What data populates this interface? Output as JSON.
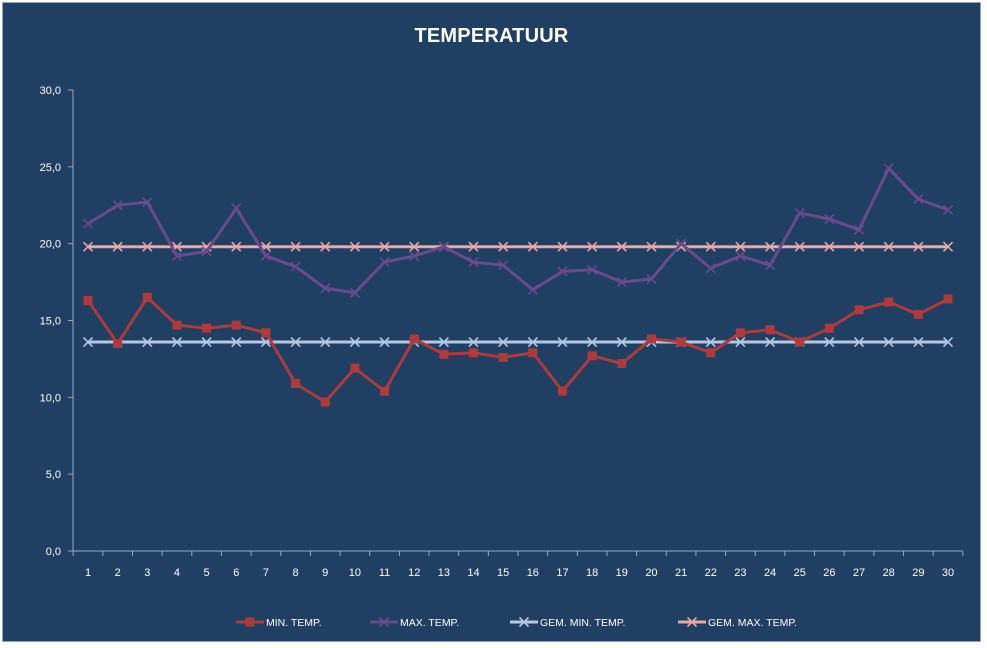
{
  "chart_data": {
    "type": "line",
    "title": "TEMPERATUUR",
    "xlabel": "",
    "ylabel": "",
    "x": [
      1,
      2,
      3,
      4,
      5,
      6,
      7,
      8,
      9,
      10,
      11,
      12,
      13,
      14,
      15,
      16,
      17,
      18,
      19,
      20,
      21,
      22,
      23,
      24,
      25,
      26,
      27,
      28,
      29,
      30
    ],
    "ylim": [
      0,
      30
    ],
    "yticks": [
      "0,0",
      "5,0",
      "10,0",
      "15,0",
      "20,0",
      "25,0",
      "30,0"
    ],
    "ytick_values": [
      0,
      5,
      10,
      15,
      20,
      25,
      30
    ],
    "grid": false,
    "legend": "bottom",
    "series": [
      {
        "name": "MIN. TEMP.",
        "color": "#b03a3a",
        "marker": "square",
        "values": [
          16.3,
          13.5,
          16.5,
          14.7,
          14.5,
          14.7,
          14.2,
          10.9,
          9.7,
          11.9,
          10.4,
          13.8,
          12.8,
          12.9,
          12.6,
          12.9,
          10.4,
          12.7,
          12.2,
          13.8,
          13.6,
          12.9,
          14.2,
          14.4,
          13.6,
          14.5,
          15.7,
          16.2,
          15.4,
          16.4
        ]
      },
      {
        "name": "MAX. TEMP.",
        "color": "#6b4a8c",
        "marker": "x",
        "values": [
          21.3,
          22.5,
          22.7,
          19.2,
          19.5,
          22.3,
          19.2,
          18.5,
          17.1,
          16.8,
          18.8,
          19.2,
          19.8,
          18.8,
          18.6,
          17.0,
          18.2,
          18.3,
          17.5,
          17.7,
          20.0,
          18.4,
          19.2,
          18.6,
          22.0,
          21.6,
          20.9,
          24.9,
          22.9,
          22.2
        ]
      },
      {
        "name": "GEM. MIN. TEMP.",
        "color": "#b4c8e2",
        "marker": "x",
        "values": [
          13.6,
          13.6,
          13.6,
          13.6,
          13.6,
          13.6,
          13.6,
          13.6,
          13.6,
          13.6,
          13.6,
          13.6,
          13.6,
          13.6,
          13.6,
          13.6,
          13.6,
          13.6,
          13.6,
          13.6,
          13.6,
          13.6,
          13.6,
          13.6,
          13.6,
          13.6,
          13.6,
          13.6,
          13.6,
          13.6
        ]
      },
      {
        "name": "GEM. MAX. TEMP.",
        "color": "#e6a9a4",
        "marker": "x",
        "values": [
          19.8,
          19.8,
          19.8,
          19.8,
          19.8,
          19.8,
          19.8,
          19.8,
          19.8,
          19.8,
          19.8,
          19.8,
          19.8,
          19.8,
          19.8,
          19.8,
          19.8,
          19.8,
          19.8,
          19.8,
          19.8,
          19.8,
          19.8,
          19.8,
          19.8,
          19.8,
          19.8,
          19.8,
          19.8,
          19.8
        ]
      }
    ]
  }
}
